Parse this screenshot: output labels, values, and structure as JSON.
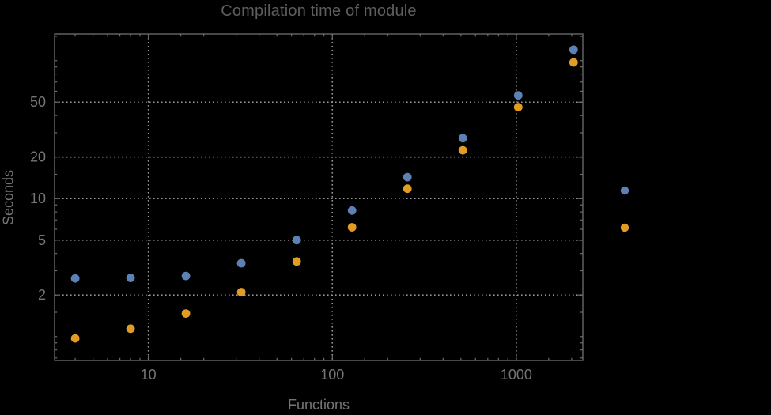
{
  "chart": {
    "title": "Compilation time of module",
    "xlabel": "Functions",
    "ylabel": "Seconds"
  },
  "chart_data": {
    "type": "scatter",
    "title": "Compilation time of module",
    "xlabel": "Functions",
    "ylabel": "Seconds",
    "x_scale": "log",
    "y_scale": "log",
    "grid": true,
    "xlim": [
      3.09,
      2300
    ],
    "ylim": [
      0.671,
      156
    ],
    "x_ticks_labeled": [
      10,
      100,
      1000
    ],
    "y_ticks_labeled": [
      2,
      5,
      10,
      20,
      50
    ],
    "x": [
      4,
      8,
      16,
      32,
      64,
      128,
      256,
      512,
      1024,
      2048
    ],
    "series": [
      {
        "name": "series-blue",
        "color": "#5e81b5",
        "values": [
          2.64,
          2.66,
          2.75,
          3.4,
          5.0,
          8.2,
          14.3,
          27.4,
          56,
          120
        ]
      },
      {
        "name": "series-orange",
        "color": "#e29c24",
        "values": [
          0.97,
          1.14,
          1.47,
          2.1,
          3.5,
          6.2,
          11.8,
          22.4,
          46,
          97
        ]
      }
    ],
    "legend_position": "right-outside",
    "legend": [
      {
        "color": "#5e81b5"
      },
      {
        "color": "#e29c24"
      }
    ]
  },
  "style": {
    "background": "#000000",
    "frame_color": "#6e6e6e",
    "grid_color": "#969696",
    "tick_label_color": "#757575",
    "title_color": "#5e5e5e"
  }
}
